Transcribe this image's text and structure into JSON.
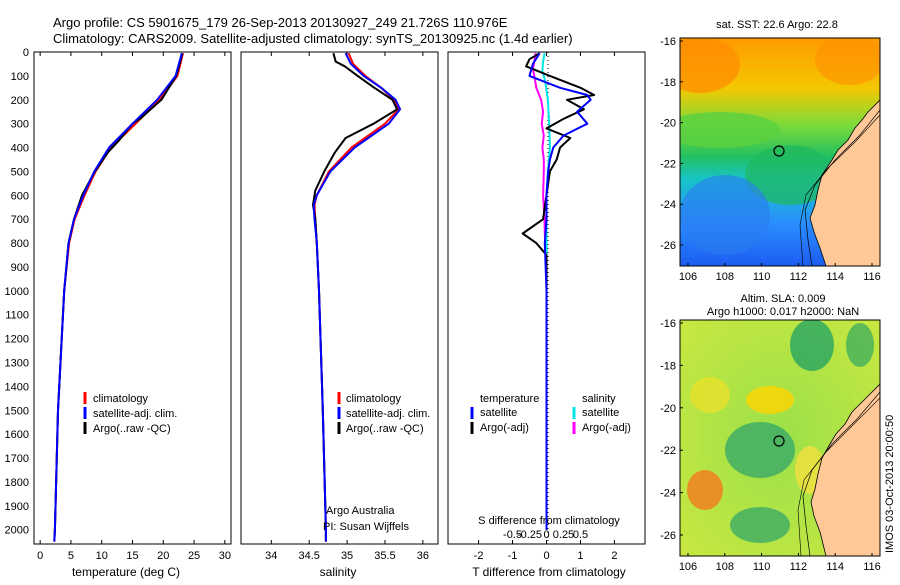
{
  "header": {
    "line1": "Argo profile: CS 5901675_179 26-Sep-2013 20130927_249 21.726S 110.976E",
    "line2": "Climatology: CARS2009. Satellite-adjusted climatology: synTS_20130925.nc (1.4d earlier)"
  },
  "depth_ticks": [
    "0",
    "100",
    "200",
    "300",
    "400",
    "500",
    "600",
    "700",
    "800",
    "900",
    "1000",
    "1100",
    "1200",
    "1300",
    "1400",
    "1500",
    "1600",
    "1700",
    "1800",
    "1900",
    "2000"
  ],
  "colors": {
    "climatology": "#ff0000",
    "satellite": "#0000ff",
    "argo": "#000000",
    "salinity_sat": "#00e5e5",
    "salinity_argo": "#ff00ff"
  },
  "chart_data": [
    {
      "type": "line",
      "id": "temperature",
      "xlabel": "temperature (deg C)",
      "xlim": [
        -1,
        31
      ],
      "xticks": [
        0,
        5,
        10,
        15,
        20,
        25,
        30
      ],
      "ylim": [
        0,
        2060
      ],
      "legend": [
        "climatology",
        "satellite-adj. clim.",
        "Argo(..raw -QC)"
      ],
      "series": [
        {
          "name": "climatology",
          "depth": [
            5,
            100,
            200,
            300,
            400,
            500,
            600,
            700,
            800,
            1000,
            1500,
            2000,
            2050
          ],
          "values": [
            23.2,
            22.3,
            19.4,
            15.5,
            11.5,
            9.0,
            7.2,
            5.6,
            4.7,
            3.9,
            2.9,
            2.4,
            2.3
          ]
        },
        {
          "name": "satellite-adj. clim.",
          "depth": [
            5,
            100,
            200,
            300,
            400,
            500,
            600,
            700,
            800,
            1000,
            1500,
            2000,
            2050
          ],
          "values": [
            23.0,
            22.0,
            19.0,
            15.0,
            11.2,
            8.8,
            7.0,
            5.5,
            4.6,
            3.9,
            2.9,
            2.4,
            2.3
          ]
        },
        {
          "name": "Argo(..raw -QC)",
          "depth": [
            5,
            100,
            200,
            280,
            300,
            370,
            420,
            500,
            600,
            700,
            800,
            1000,
            1500,
            2000,
            2050
          ],
          "values": [
            23.1,
            22.1,
            19.7,
            16.2,
            15.0,
            12.8,
            11.0,
            8.9,
            6.8,
            5.5,
            4.6,
            3.9,
            2.9,
            2.4,
            2.3
          ]
        }
      ]
    },
    {
      "type": "line",
      "id": "salinity",
      "xlabel": "salinity",
      "xlim": [
        33.6,
        36.2
      ],
      "xticks": [
        34,
        34.5,
        35,
        35.5,
        36
      ],
      "xticklabels": [
        "34",
        "34.5",
        "35",
        "35.5",
        "36"
      ],
      "ylim": [
        0,
        2060
      ],
      "legend": [
        "climatology",
        "satellite-adj. clim.",
        "Argo(..raw -QC)"
      ],
      "credit": [
        "Argo Australia",
        "PI: Susan Wijffels"
      ],
      "series": [
        {
          "name": "climatology",
          "depth": [
            5,
            50,
            100,
            150,
            200,
            240,
            300,
            400,
            500,
            600,
            640,
            700,
            800,
            1000,
            1500,
            2000,
            2050
          ],
          "values": [
            35.02,
            35.08,
            35.24,
            35.45,
            35.62,
            35.68,
            35.5,
            35.06,
            34.76,
            34.6,
            34.57,
            34.58,
            34.6,
            34.63,
            34.68,
            34.72,
            34.72
          ]
        },
        {
          "name": "satellite-adj. clim.",
          "depth": [
            5,
            50,
            100,
            150,
            200,
            240,
            300,
            400,
            500,
            600,
            640,
            700,
            800,
            1000,
            1500,
            2000,
            2050
          ],
          "values": [
            34.98,
            35.05,
            35.22,
            35.45,
            35.64,
            35.7,
            35.55,
            35.1,
            34.78,
            34.6,
            34.56,
            34.57,
            34.6,
            34.63,
            34.68,
            34.72,
            34.72
          ]
        },
        {
          "name": "Argo(..raw -QC)",
          "depth": [
            5,
            40,
            60,
            100,
            150,
            200,
            240,
            300,
            360,
            420,
            500,
            580,
            640,
            700,
            800,
            1000,
            1500,
            2000,
            2050
          ],
          "values": [
            34.82,
            34.85,
            34.97,
            35.14,
            35.36,
            35.6,
            35.66,
            35.35,
            34.98,
            34.84,
            34.7,
            34.58,
            34.55,
            34.58,
            34.6,
            34.63,
            34.68,
            34.72,
            34.72
          ]
        }
      ]
    },
    {
      "type": "line",
      "id": "difference",
      "xlabel": "T difference from climatology",
      "xlim": [
        -2.9,
        2.9
      ],
      "xticks": [
        -2,
        -1,
        0,
        1,
        2
      ],
      "top_xlabel": "S difference from climatology",
      "top_xticks": [
        -0.5,
        -0.25,
        0,
        0.25,
        0.5
      ],
      "top_xticklabels": [
        "-0.5",
        "-0.25",
        "0",
        "0.25",
        "0.5"
      ],
      "ylim": [
        0,
        2060
      ],
      "legend_temperature": {
        "title": "temperature",
        "entries": [
          "satellite",
          "Argo(-adj)"
        ]
      },
      "legend_salinity": {
        "title": "salinity",
        "entries": [
          "satellite",
          "Argo(-adj)"
        ]
      },
      "series": [
        {
          "name": "temperature satellite",
          "depth": [
            5,
            50,
            100,
            150,
            180,
            200,
            250,
            300,
            350,
            400,
            450,
            500,
            600,
            700,
            800,
            1000,
            1500,
            2000
          ],
          "values": [
            -0.2,
            -0.4,
            -0.5,
            0.4,
            1.2,
            1.3,
            0.9,
            1.2,
            0.5,
            0.2,
            0.1,
            0.05,
            0.0,
            0.0,
            -0.05,
            0.0,
            0.0,
            0.0
          ]
        },
        {
          "name": "temperature Argo(-adj)",
          "depth": [
            5,
            30,
            60,
            100,
            150,
            180,
            200,
            240,
            280,
            320,
            360,
            400,
            450,
            500,
            600,
            700,
            760,
            800,
            850,
            1000,
            1500,
            2000
          ],
          "values": [
            -0.2,
            -0.5,
            -0.6,
            0.1,
            1.0,
            1.4,
            0.6,
            1.1,
            0.5,
            0.0,
            0.7,
            0.4,
            0.3,
            0.1,
            0.0,
            -0.1,
            -0.7,
            -0.3,
            0.0,
            0.0,
            0.0,
            0.0
          ]
        },
        {
          "name": "salinity satellite",
          "depth": [
            5,
            40,
            80,
            120,
            200,
            250,
            300,
            400,
            500,
            600,
            700,
            800,
            1000,
            1500,
            2000
          ],
          "values": [
            -0.03,
            -0.05,
            -0.06,
            -0.02,
            0.02,
            0.03,
            0.04,
            0.05,
            0.02,
            0.0,
            0.0,
            0.0,
            0.0,
            0.0,
            0.0
          ]
        },
        {
          "name": "salinity Argo(-adj)",
          "depth": [
            5,
            40,
            70,
            100,
            150,
            200,
            250,
            300,
            350,
            400,
            450,
            500,
            600,
            700,
            800,
            900,
            1000,
            1500,
            2000
          ],
          "values": [
            -0.16,
            -0.18,
            -0.2,
            -0.18,
            -0.15,
            -0.08,
            -0.05,
            -0.07,
            -0.04,
            -0.06,
            -0.04,
            -0.04,
            -0.05,
            -0.03,
            -0.02,
            0.0,
            0.0,
            0.0,
            0.0
          ]
        }
      ]
    },
    {
      "type": "heatmap",
      "id": "sst-map",
      "title": "sat. SST: 22.6 Argo: 22.8",
      "xticks": [
        "106",
        "108",
        "110",
        "112",
        "114",
        "116"
      ],
      "yticks": [
        "-16",
        "-18",
        "-20",
        "-22",
        "-24",
        "-26"
      ]
    },
    {
      "type": "heatmap",
      "id": "sla-map",
      "title_line1": "Altim. SLA: 0.009",
      "title_line2": "Argo h1000: 0.017 h2000: NaN",
      "xticks": [
        "106",
        "108",
        "110",
        "112",
        "114",
        "116"
      ],
      "yticks": [
        "-16",
        "-18",
        "-20",
        "-22",
        "-24",
        "-26"
      ],
      "stamp": "IMOS 03-Oct-2013 20:00:50"
    }
  ]
}
